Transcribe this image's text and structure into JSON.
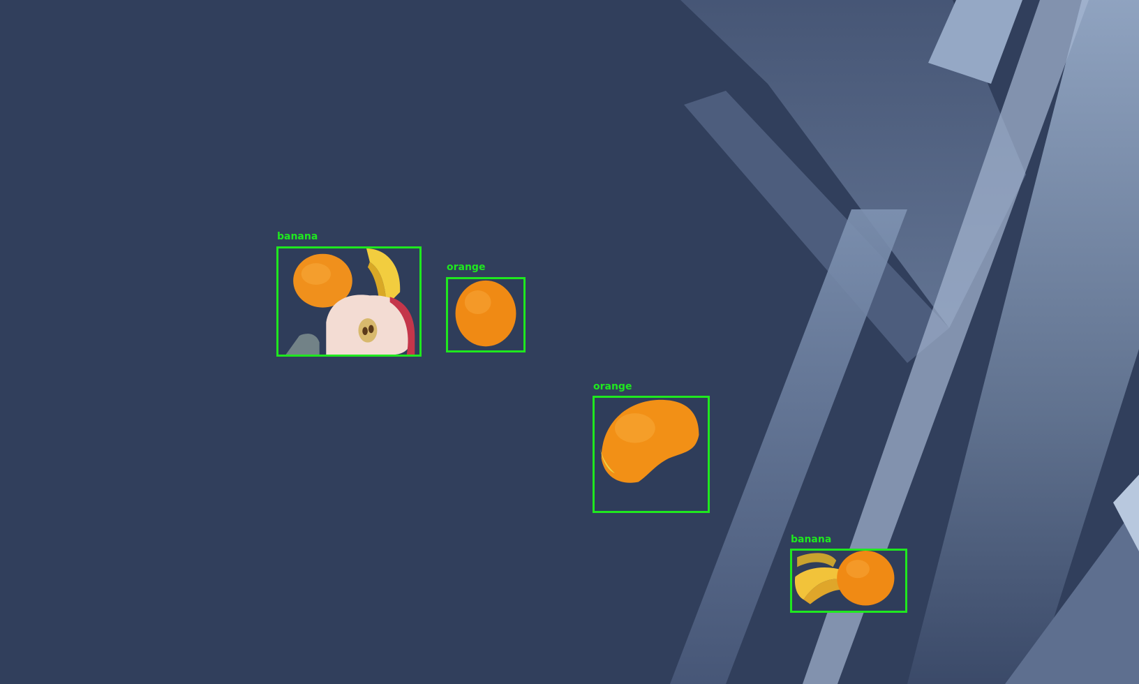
{
  "image": {
    "background_color": "#313f5c",
    "box_color": "#1fe81f"
  },
  "detections": [
    {
      "label": "banana",
      "contents": [
        "orange",
        "banana",
        "apple-half"
      ]
    },
    {
      "label": "orange",
      "contents": [
        "orange"
      ]
    },
    {
      "label": "orange",
      "contents": [
        "orange-cut"
      ]
    },
    {
      "label": "banana",
      "contents": [
        "banana",
        "orange"
      ]
    }
  ]
}
